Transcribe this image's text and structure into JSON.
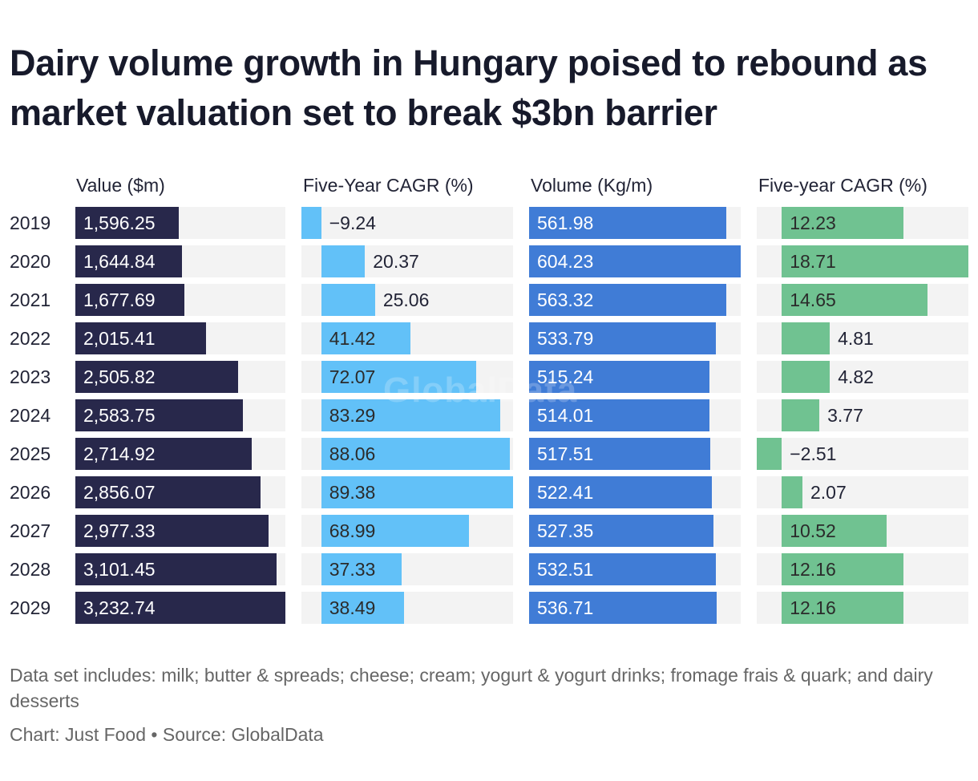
{
  "title": "Dairy volume growth in Hungary poised to rebound as market valuation set to break $3bn barrier",
  "note": "Data set includes: milk; butter & spreads; cheese; cream; yogurt & yogurt drinks; fromage frais & quark; and dairy desserts",
  "credit": "Chart: Just Food • Source: GlobalData",
  "watermark": "GlobalData",
  "colors": {
    "value": "#28284b",
    "value_cagr": "#62c1f8",
    "volume": "#407cd6",
    "volume_cagr": "#70c291",
    "track": "#f3f3f3"
  },
  "chart_data": {
    "type": "table",
    "title": "Dairy volume growth in Hungary poised to rebound as market valuation set to break $3bn barrier",
    "categories": [
      "2019",
      "2020",
      "2021",
      "2022",
      "2023",
      "2024",
      "2025",
      "2026",
      "2027",
      "2028",
      "2029"
    ],
    "series": [
      {
        "name": "Value ($m)",
        "values": [
          1596.25,
          1644.84,
          1677.69,
          2015.41,
          2505.82,
          2583.75,
          2714.92,
          2856.07,
          2977.33,
          3101.45,
          3232.74
        ],
        "labels": [
          "1,596.25",
          "1,644.84",
          "1,677.69",
          "2,015.41",
          "2,505.82",
          "2,583.75",
          "2,714.92",
          "2,856.07",
          "2,977.33",
          "3,101.45",
          "3,232.74"
        ]
      },
      {
        "name": "Five-Year CAGR (%)",
        "values": [
          -9.24,
          20.37,
          25.06,
          41.42,
          72.07,
          83.29,
          88.06,
          89.38,
          68.99,
          37.33,
          38.49
        ],
        "labels": [
          "−9.24",
          "20.37",
          "25.06",
          "41.42",
          "72.07",
          "83.29",
          "88.06",
          "89.38",
          "68.99",
          "37.33",
          "38.49"
        ]
      },
      {
        "name": "Volume (Kg/m)",
        "values": [
          561.98,
          604.23,
          563.32,
          533.79,
          515.24,
          514.01,
          517.51,
          522.41,
          527.35,
          532.51,
          536.71
        ],
        "labels": [
          "561.98",
          "604.23",
          "563.32",
          "533.79",
          "515.24",
          "514.01",
          "517.51",
          "522.41",
          "527.35",
          "532.51",
          "536.71"
        ]
      },
      {
        "name": "Five-year CAGR (%)",
        "values": [
          12.23,
          18.71,
          14.65,
          4.81,
          4.82,
          3.77,
          -2.51,
          2.07,
          10.52,
          12.16,
          12.16
        ],
        "labels": [
          "12.23",
          "18.71",
          "14.65",
          "4.81",
          "4.82",
          "3.77",
          "−2.51",
          "2.07",
          "10.52",
          "12.16",
          "12.16"
        ]
      }
    ]
  }
}
